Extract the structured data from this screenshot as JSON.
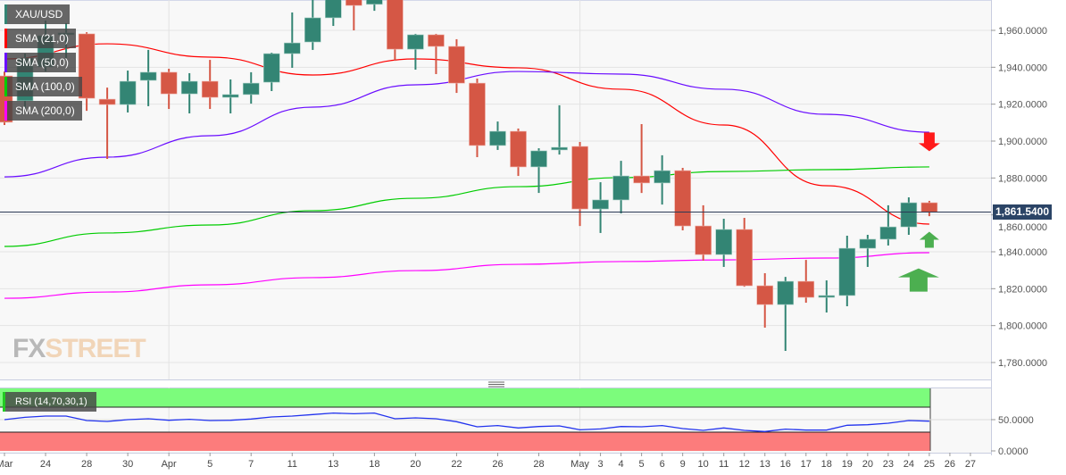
{
  "chart_data": {
    "type": "candlestick",
    "symbol": "XAU/USD",
    "last_price": "1,861.5400",
    "ylim": [
      1770,
      1976
    ],
    "y_ticks": [
      "1,780.0000",
      "1,800.0000",
      "1,820.0000",
      "1,840.0000",
      "1,860.0000",
      "1,880.0000",
      "1,900.0000",
      "1,920.0000",
      "1,940.0000",
      "1,960.0000"
    ],
    "y_tick_values": [
      1780,
      1800,
      1820,
      1840,
      1860,
      1880,
      1900,
      1920,
      1940,
      1960
    ],
    "x_labels": [
      "Mar",
      "24",
      "28",
      "30",
      "Apr",
      "5",
      "7",
      "11",
      "13",
      "18",
      "20",
      "22",
      "26",
      "28",
      "May",
      "3",
      "4",
      "5",
      "6",
      "9",
      "10",
      "11",
      "12",
      "13",
      "16",
      "17",
      "18",
      "19",
      "20",
      "23",
      "24",
      "25",
      "26",
      "27"
    ],
    "x_label_candle_index": [
      0,
      2,
      4,
      6,
      8,
      10,
      12,
      14,
      16,
      18,
      20,
      22,
      24,
      26,
      28,
      29,
      30,
      31,
      32,
      33,
      34,
      35,
      36,
      37,
      38,
      39,
      40,
      41,
      42,
      43,
      44,
      45,
      46,
      47
    ],
    "ohlc": [
      [
        1935.3,
        1937.7,
        1908.7,
        1910.2
      ],
      [
        1921.8,
        1947.4,
        1917.4,
        1945.0
      ],
      [
        1940.2,
        1965.3,
        1937.7,
        1957.1
      ],
      [
        1958.1,
        1963.9,
        1945.0,
        1958.6
      ],
      [
        1958.1,
        1959.0,
        1916.4,
        1923.2
      ],
      [
        1922.7,
        1929.0,
        1890.3,
        1919.8
      ],
      [
        1919.8,
        1938.2,
        1915.5,
        1932.4
      ],
      [
        1932.9,
        1949.4,
        1918.9,
        1937.3
      ],
      [
        1937.3,
        1939.2,
        1917.4,
        1925.6
      ],
      [
        1925.6,
        1936.8,
        1915.0,
        1932.4
      ],
      [
        1932.4,
        1944.0,
        1917.4,
        1923.7
      ],
      [
        1923.7,
        1933.4,
        1915.0,
        1925.2
      ],
      [
        1925.2,
        1937.3,
        1920.3,
        1931.4
      ],
      [
        1931.9,
        1947.9,
        1927.1,
        1947.4
      ],
      [
        1947.4,
        1969.7,
        1939.7,
        1953.2
      ],
      [
        1953.7,
        1978.9,
        1949.4,
        1966.8
      ],
      [
        1966.8,
        1986.1,
        1962.4,
        1981.3
      ],
      [
        1977.5,
        1978.9,
        1960.0,
        1973.5
      ],
      [
        1974.1,
        1981.3,
        1970.6,
        1978.9
      ],
      [
        1981.3,
        1983.7,
        1943.5,
        1949.8
      ],
      [
        1949.8,
        1958.1,
        1938.7,
        1957.6
      ],
      [
        1957.6,
        1958.1,
        1936.3,
        1951.3
      ],
      [
        1951.3,
        1955.2,
        1926.1,
        1931.4
      ],
      [
        1931.4,
        1933.9,
        1891.3,
        1897.6
      ],
      [
        1897.6,
        1910.6,
        1895.2,
        1905.3
      ],
      [
        1905.3,
        1906.8,
        1881.1,
        1886.0
      ],
      [
        1886.0,
        1896.1,
        1871.9,
        1894.7
      ],
      [
        1895.2,
        1919.4,
        1892.7,
        1896.6
      ],
      [
        1897.1,
        1899.5,
        1854.0,
        1863.2
      ],
      [
        1863.2,
        1877.7,
        1850.2,
        1868.1
      ],
      [
        1868.1,
        1889.3,
        1860.8,
        1881.1
      ],
      [
        1881.1,
        1909.2,
        1871.9,
        1877.3
      ],
      [
        1877.3,
        1892.3,
        1865.6,
        1884.0
      ],
      [
        1884.0,
        1885.5,
        1851.6,
        1854.0
      ],
      [
        1854.0,
        1865.2,
        1835.2,
        1838.5
      ],
      [
        1838.5,
        1857.9,
        1831.8,
        1852.1
      ],
      [
        1852.1,
        1858.4,
        1821.1,
        1821.6
      ],
      [
        1821.6,
        1828.4,
        1798.9,
        1811.4
      ],
      [
        1811.4,
        1826.4,
        1786.3,
        1824.0
      ],
      [
        1824.0,
        1835.6,
        1812.4,
        1815.3
      ],
      [
        1815.3,
        1824.5,
        1807.1,
        1816.3
      ],
      [
        1816.3,
        1848.7,
        1810.5,
        1841.9
      ],
      [
        1841.9,
        1849.2,
        1831.8,
        1846.8
      ],
      [
        1846.8,
        1865.2,
        1843.4,
        1853.5
      ],
      [
        1853.5,
        1869.5,
        1849.2,
        1866.6
      ],
      [
        1866.6,
        1867.6,
        1859.3,
        1861.54
      ]
    ],
    "sma_sample_candle_index": [
      0,
      5,
      10,
      15,
      20,
      25,
      30,
      35,
      40,
      45
    ],
    "series": [
      {
        "name": "SMA (21,0)",
        "color": "#ff0000",
        "values": [
          1944.5,
          1952.7,
          1945.5,
          1935.8,
          1944.5,
          1939.7,
          1928.1,
          1908.7,
          1875.8,
          1855.0
        ]
      },
      {
        "name": "SMA (50,0)",
        "color": "#6a0dff",
        "values": [
          1880.6,
          1891.3,
          1902.9,
          1918.4,
          1930.5,
          1937.7,
          1936.3,
          1928.1,
          1914.5,
          1904.8
        ]
      },
      {
        "name": "SMA (100,0)",
        "color": "#00cc00",
        "values": [
          1842.9,
          1850.2,
          1854.5,
          1862.3,
          1869.0,
          1875.3,
          1880.2,
          1883.5,
          1884.5,
          1886.0
        ]
      },
      {
        "name": "SMA (200,0)",
        "color": "#ff00ff",
        "values": [
          1814.8,
          1818.2,
          1822.1,
          1826.0,
          1829.8,
          1833.2,
          1834.7,
          1835.6,
          1836.6,
          1839.5
        ]
      }
    ],
    "rsi": {
      "name": "RSI (14,70,30,1)",
      "color": "#2233ee",
      "ylim": [
        0,
        100
      ],
      "overbought": 70,
      "oversold": 30,
      "y_ticks": [
        "50.0000",
        "0.0000"
      ],
      "y_tick_values": [
        50,
        0
      ],
      "values": [
        50,
        53.8,
        55.7,
        55.7,
        48.6,
        47.1,
        50,
        51.4,
        49.0,
        50.5,
        48.6,
        49.0,
        51.0,
        54.3,
        55.7,
        58.1,
        60.5,
        59.5,
        60.5,
        51.4,
        52.9,
        51.4,
        46.7,
        38.6,
        40.5,
        36.7,
        39.0,
        40.0,
        33.8,
        35.2,
        39.0,
        38.6,
        40.5,
        35.7,
        32.9,
        36.7,
        32.9,
        31.0,
        34.8,
        33.3,
        33.3,
        41.0,
        41.9,
        44.3,
        48.6,
        47.6
      ]
    },
    "colors": {
      "up": "#338574",
      "down": "#d55745",
      "overbought_zone": "#7cfc7c",
      "oversold_zone": "#fc7c7c",
      "last_price_line": "#2b3a55",
      "arrow_down": "#ff1a1a",
      "arrow_up": "#4caf50"
    },
    "annotations": [
      {
        "type": "arrow-down",
        "color": "#ff1a1a",
        "at_candle": 45,
        "price": 1895
      },
      {
        "type": "arrow-up",
        "color": "#4caf50",
        "at_candle": 45,
        "price": 1848
      },
      {
        "type": "arrow-up-large",
        "color": "#4caf50",
        "at_candle": 44,
        "price": 1830
      }
    ],
    "grid": true
  },
  "watermark": {
    "part1": "FX",
    "part2": "STREET"
  }
}
